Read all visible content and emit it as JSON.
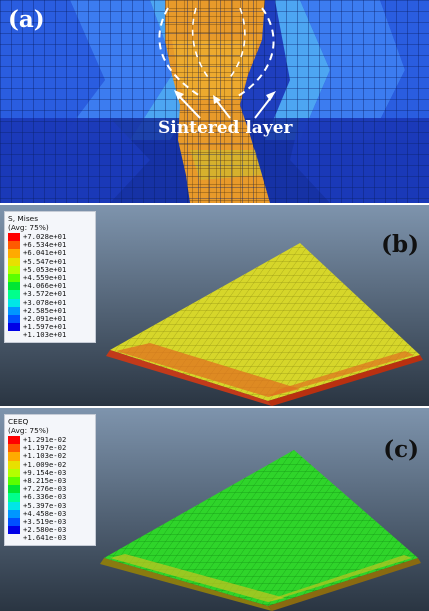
{
  "panel_a": {
    "label": "(a)",
    "annotation": "Sintered layer"
  },
  "panel_b": {
    "label": "(b)",
    "legend": {
      "title_line1": "S, Mises",
      "title_line2": "(Avg: 75%)",
      "values": [
        "+7.028e+01",
        "+6.534e+01",
        "+6.041e+01",
        "+5.547e+01",
        "+5.053e+01",
        "+4.559e+01",
        "+4.066e+01",
        "+3.572e+01",
        "+3.078e+01",
        "+2.585e+01",
        "+2.091e+01",
        "+1.597e+01",
        "+1.103e+01"
      ]
    }
  },
  "panel_c": {
    "label": "(c)",
    "legend": {
      "title_line1": "CEEQ",
      "title_line2": "(Avg: 75%)",
      "values": [
        "+1.291e-02",
        "+1.197e-02",
        "+1.103e-02",
        "+1.009e-02",
        "+9.154e-03",
        "+8.215e-03",
        "+7.276e-03",
        "+6.336e-03",
        "+5.397e-03",
        "+4.458e-03",
        "+3.519e-03",
        "+2.580e-03",
        "+1.641e-03"
      ]
    }
  },
  "colors": {
    "contour_scale": [
      "#ff0000",
      "#ff5a00",
      "#ffaa00",
      "#e8e000",
      "#b4ff00",
      "#5aff00",
      "#00e633",
      "#00ff8c",
      "#00e6e6",
      "#0096ff",
      "#0050ff",
      "#0000e6"
    ]
  }
}
